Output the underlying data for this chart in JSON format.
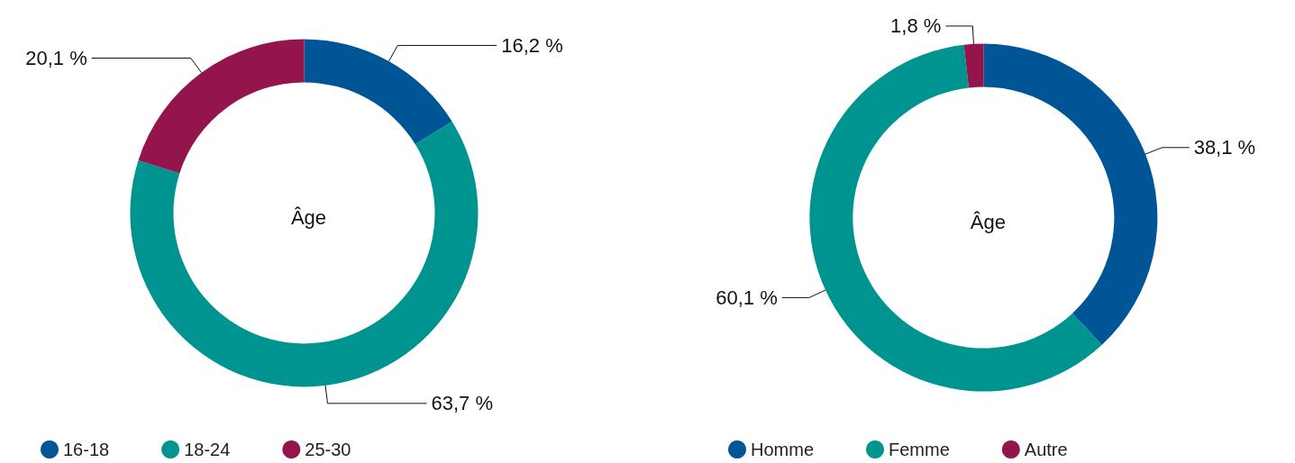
{
  "chart_data": [
    {
      "type": "donut",
      "title": "Âge",
      "categories": [
        "16-18",
        "18-24",
        "25-30"
      ],
      "values": [
        16.2,
        63.7,
        20.1
      ],
      "value_labels": [
        "16,2 %",
        "63,7 %",
        "20,1 %"
      ],
      "colors": [
        "#005596",
        "#009490",
        "#93154c"
      ],
      "legend": "bottom left"
    },
    {
      "type": "donut",
      "title": "Âge",
      "categories": [
        "Homme",
        "Femme",
        "Autre"
      ],
      "values": [
        38.1,
        60.1,
        1.8
      ],
      "value_labels": [
        "38,1 %",
        "60,1 %",
        "1,8 %"
      ],
      "colors": [
        "#005596",
        "#009490",
        "#93154c"
      ],
      "legend": "bottom left"
    }
  ]
}
